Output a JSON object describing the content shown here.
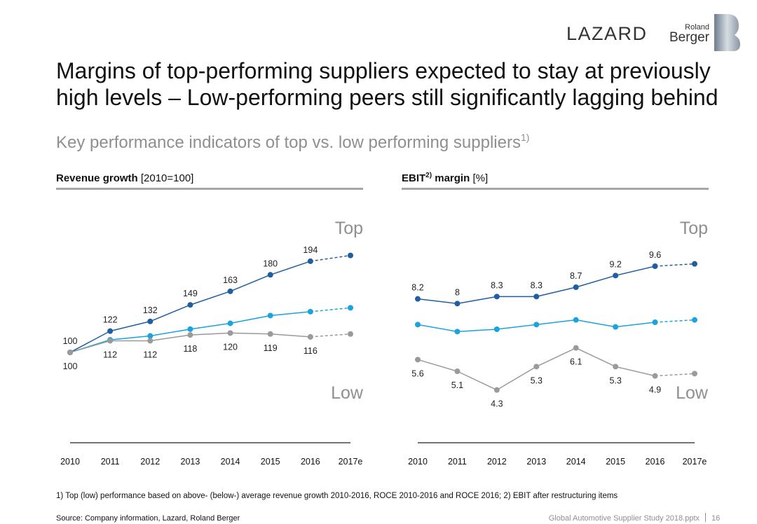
{
  "header": {
    "logo_left": "LAZARD",
    "logo_small": "Roland",
    "logo_main": "Berger"
  },
  "title": [
    "Margins of top-performing suppliers expected to stay at previously",
    "high levels – Low-performing peers still significantly lagging behind"
  ],
  "subtitle": "Key performance indicators of top vs. low performing suppliers",
  "subtitle_sup": "1)",
  "chart_data": [
    {
      "type": "line",
      "title": "Revenue growth",
      "unit": "[2010=100]",
      "categories": [
        "2010",
        "2011",
        "2012",
        "2013",
        "2014",
        "2015",
        "2016",
        "2017e"
      ],
      "estimate_index": 7,
      "ylim": [
        30,
        225
      ],
      "series": [
        {
          "name": "Top",
          "color": "#1f5fa0",
          "labels": "above",
          "values": [
            100,
            122,
            132,
            149,
            163,
            180,
            194,
            200
          ]
        },
        {
          "color": "#1aa3dc",
          "values": [
            100,
            113,
            117,
            124,
            130,
            138,
            142,
            146
          ]
        },
        {
          "name": "Low",
          "color": "#9a9a9c",
          "labels": "below",
          "values": [
            100,
            112,
            112,
            118,
            120,
            119,
            116,
            119
          ]
        }
      ]
    },
    {
      "type": "line",
      "title": "EBIT",
      "title_sup": "2)",
      "title_rest": " margin",
      "unit": "[%]",
      "categories": [
        "2010",
        "2011",
        "2012",
        "2013",
        "2014",
        "2015",
        "2016",
        "2017e"
      ],
      "estimate_index": 7,
      "ylim": [
        3,
        11.1
      ],
      "series": [
        {
          "name": "Top",
          "color": "#1f5fa0",
          "labels": "above",
          "values": [
            8.2,
            8.0,
            8.3,
            8.3,
            8.7,
            9.2,
            9.6,
            9.7
          ]
        },
        {
          "color": "#1aa3dc",
          "values": [
            7.1,
            6.8,
            6.9,
            7.1,
            7.3,
            7.0,
            7.2,
            7.3
          ]
        },
        {
          "name": "Low",
          "color": "#9a9a9c",
          "labels": "below",
          "values": [
            5.6,
            5.1,
            4.3,
            5.3,
            6.1,
            5.3,
            4.9,
            5.0
          ]
        }
      ]
    }
  ],
  "footnote": "1) Top (low) performance based on above- (below-) average revenue growth 2010-2016, ROCE 2010-2016 and ROCE 2016; 2) EBIT after restructuring items",
  "source": "Source: Company information, Lazard, Roland Berger",
  "file": "Global Automotive Supplier Study 2018.pptx",
  "page": "16"
}
